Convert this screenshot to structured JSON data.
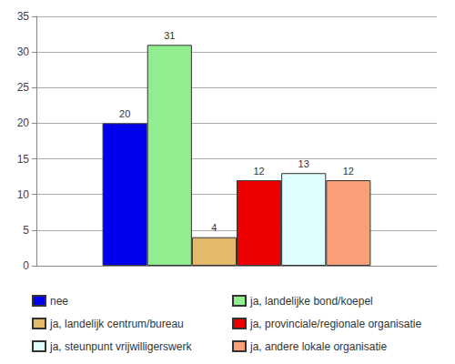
{
  "chart_data": {
    "type": "bar",
    "categories": [
      null
    ],
    "series": [
      {
        "name": "nee",
        "color": "#0000ee",
        "values": [
          20
        ]
      },
      {
        "name": "ja, landelijke bond/koepel",
        "color": "#90ee90",
        "values": [
          31
        ]
      },
      {
        "name": "ja, landelijk centrum/bureau",
        "color": "#e3b96c",
        "values": [
          4
        ]
      },
      {
        "name": "ja, provinciale/regionale organisatie",
        "color": "#ee0000",
        "values": [
          12
        ]
      },
      {
        "name": "ja, steunpunt vrijwilligerswerk",
        "color": "#e0ffff",
        "values": [
          13
        ]
      },
      {
        "name": "ja, andere lokale organisatie",
        "color": "#f9a07a",
        "values": [
          12
        ]
      }
    ],
    "ylim": [
      0,
      35
    ],
    "yticks": [
      0,
      5,
      10,
      15,
      20,
      25,
      30,
      35
    ],
    "grid": true,
    "data_labels": true,
    "legend": "bottom",
    "tick_labels": "y"
  }
}
